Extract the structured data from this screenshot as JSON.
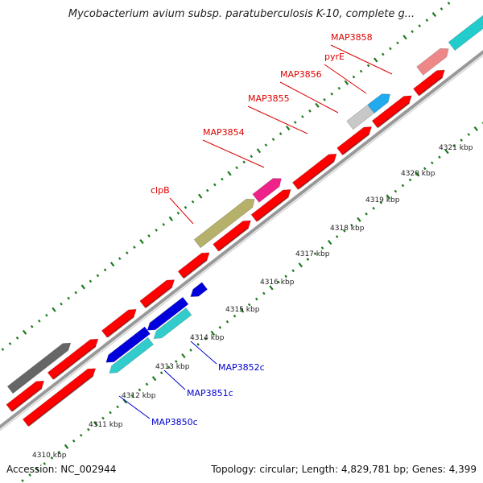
{
  "title": "Mycobacterium avium subsp. paratuberculosis K-10, complete g...",
  "accession": "Accession: NC_002944",
  "topology": "Topology: circular; Length: 4,829,781 bp; Genes: 4,399",
  "colors": {
    "axis": "#999999",
    "tick": "#1a7a1a",
    "cds": "#ff0000",
    "label_forward": "#dd0000",
    "label_reverse": "#0000cc"
  },
  "scale": {
    "unit": "kbp",
    "ticks": [
      {
        "label": "4310 kbp"
      },
      {
        "label": "4311 kbp"
      },
      {
        "label": "4312 kbp"
      },
      {
        "label": "4313 kbp"
      },
      {
        "label": "4314 kbp"
      },
      {
        "label": "4315 kbp"
      },
      {
        "label": "4316 kbp"
      },
      {
        "label": "4317 kbp"
      },
      {
        "label": "4318 kbp"
      },
      {
        "label": "4319 kbp"
      },
      {
        "label": "4320 kbp"
      },
      {
        "label": "4321 kbp"
      }
    ]
  },
  "genes_forward": [
    {
      "label": "clpB",
      "color": "#b5b06a"
    },
    {
      "label": "MAP3854",
      "color": "#ee2288"
    },
    {
      "label": "MAP3855",
      "color": "#ff0000"
    },
    {
      "label": "MAP3856",
      "color": "#c8c8c8"
    },
    {
      "label": "pyrE",
      "color": "#22aaee"
    },
    {
      "label": "MAP3858",
      "color": "#ee8888"
    }
  ],
  "genes_reverse": [
    {
      "label": "MAP3850c",
      "color": "#33cccc"
    },
    {
      "label": "MAP3851c",
      "color": "#0000dd"
    },
    {
      "label": "MAP3852c",
      "color": "#0000dd"
    }
  ]
}
